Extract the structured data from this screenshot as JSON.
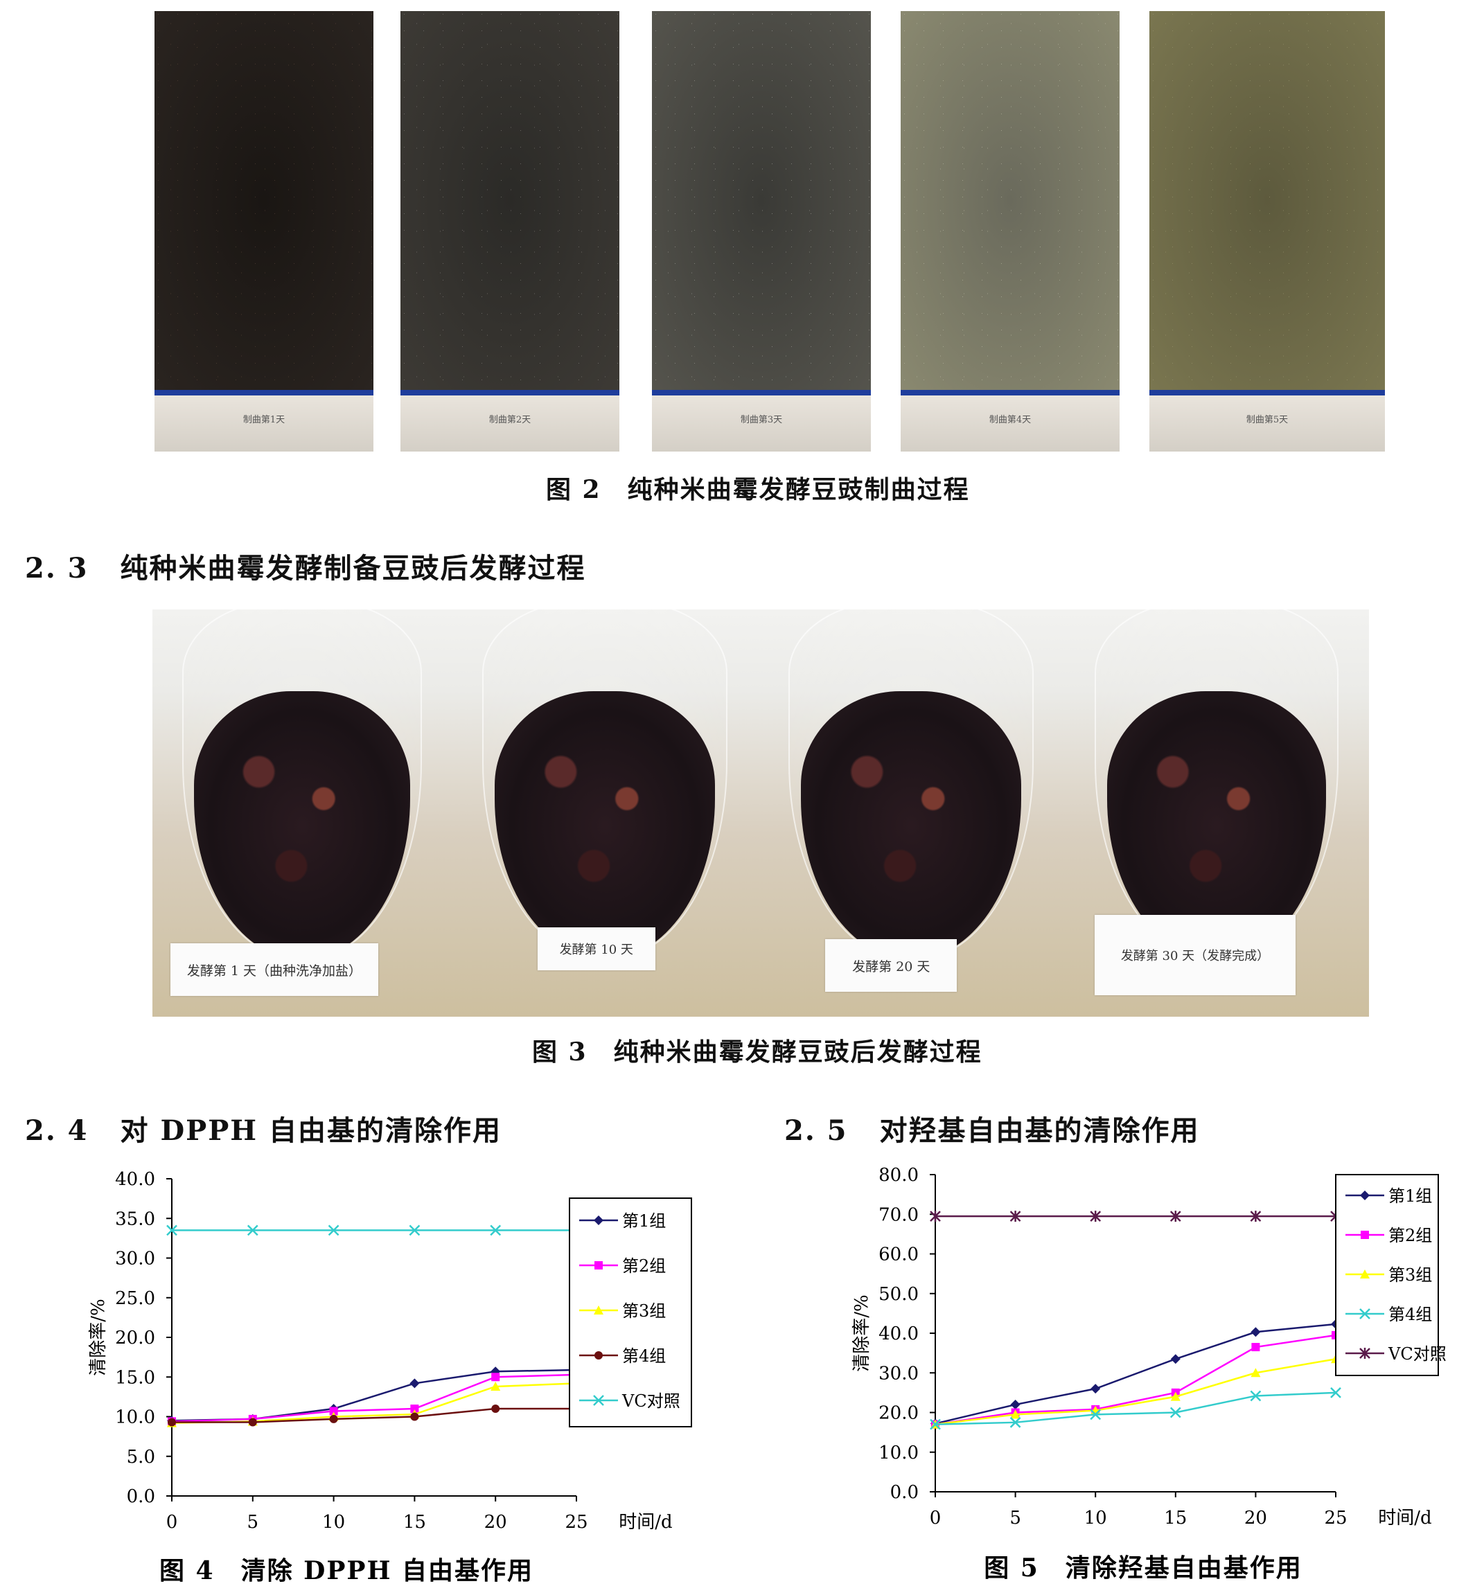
{
  "fig2": {
    "caption": "图 2　纯种米曲霉发酵豆豉制曲过程",
    "trays": [
      {
        "label": "制曲第1天",
        "color_top": "#1a1613",
        "color_bottom": "#2a2420",
        "speck": "#6b5040"
      },
      {
        "label": "制曲第2天",
        "color_top": "#2b2a27",
        "color_bottom": "#3d3a35",
        "speck": "#9a9590"
      },
      {
        "label": "制曲第3天",
        "color_top": "#3a3a36",
        "color_bottom": "#55544d",
        "speck": "#b5b4ad"
      },
      {
        "label": "制曲第4天",
        "color_top": "#6a6a5c",
        "color_bottom": "#8a8970",
        "speck": "#c9c8b2"
      },
      {
        "label": "制曲第5天",
        "color_top": "#5d5a3d",
        "color_bottom": "#7a7650",
        "speck": "#a8a47a"
      }
    ]
  },
  "section_2_3": {
    "number": "2. 3",
    "title": "纯种米曲霉发酵制备豆豉后发酵过程"
  },
  "fig3": {
    "caption": "图 3　纯种米曲霉发酵豆豉后发酵过程",
    "flasks": [
      {
        "label": "发酵第 1 天（曲种洗净加盐）"
      },
      {
        "label": "发酵第 10 天"
      },
      {
        "label": "发酵第 20 天"
      },
      {
        "label": "发酵第 30 天（发酵完成）"
      }
    ]
  },
  "section_2_4": {
    "number": "2. 4",
    "title": "对 DPPH 自由基的清除作用"
  },
  "section_2_5": {
    "number": "2. 5",
    "title": "对羟基自由基的清除作用"
  },
  "chart_data": [
    {
      "type": "line",
      "caption": "图 4　清除 DPPH 自由基作用",
      "ylabel": "清除率/%",
      "xlabel": "时间/d",
      "x": [
        0,
        5,
        10,
        15,
        20,
        25
      ],
      "xticks": [
        "0",
        "5",
        "10",
        "15",
        "20",
        "25"
      ],
      "ylim": [
        0,
        40
      ],
      "yticks": [
        "0.0",
        "5.0",
        "10.0",
        "15.0",
        "20.0",
        "25.0",
        "30.0",
        "35.0",
        "40.0"
      ],
      "legend_position": "right",
      "series": [
        {
          "name": "第1组",
          "color": "#1a1a6e",
          "marker": "diamond",
          "values": [
            9.5,
            9.7,
            11.0,
            14.2,
            15.7,
            15.9
          ]
        },
        {
          "name": "第2组",
          "color": "#ff00ff",
          "marker": "square",
          "values": [
            9.4,
            9.7,
            10.7,
            11.0,
            15.0,
            15.3
          ]
        },
        {
          "name": "第3组",
          "color": "#ffff00",
          "marker": "triangle",
          "values": [
            9.2,
            9.4,
            10.0,
            10.3,
            13.8,
            14.2
          ]
        },
        {
          "name": "第4组",
          "color": "#6b0f0f",
          "marker": "circle",
          "values": [
            9.3,
            9.3,
            9.7,
            10.0,
            11.0,
            11.0
          ]
        },
        {
          "name": "VC对照",
          "color": "#33cccc",
          "marker": "x",
          "values": [
            33.5,
            33.5,
            33.5,
            33.5,
            33.5,
            33.5
          ]
        }
      ]
    },
    {
      "type": "line",
      "caption": "图 5　清除羟基自由基作用",
      "ylabel": "清除率/%",
      "xlabel": "时间/d",
      "x": [
        0,
        5,
        10,
        15,
        20,
        25
      ],
      "xticks": [
        "0",
        "5",
        "10",
        "15",
        "20",
        "25"
      ],
      "ylim": [
        0,
        80
      ],
      "yticks": [
        "0.0",
        "10.0",
        "20.0",
        "30.0",
        "40.0",
        "50.0",
        "60.0",
        "70.0",
        "80.0"
      ],
      "legend_position": "top-right",
      "series": [
        {
          "name": "第1组",
          "color": "#1a1a6e",
          "marker": "diamond",
          "values": [
            17.2,
            22.0,
            26.0,
            33.5,
            40.3,
            42.3
          ]
        },
        {
          "name": "第2组",
          "color": "#ff00ff",
          "marker": "square",
          "values": [
            17.0,
            20.0,
            20.8,
            25.0,
            36.5,
            39.5
          ]
        },
        {
          "name": "第3组",
          "color": "#ffff00",
          "marker": "triangle",
          "values": [
            17.0,
            19.5,
            20.5,
            24.0,
            30.0,
            33.5
          ]
        },
        {
          "name": "第4组",
          "color": "#33cccc",
          "marker": "x",
          "values": [
            17.0,
            17.5,
            19.5,
            20.0,
            24.2,
            25.0
          ]
        },
        {
          "name": "VC对照",
          "color": "#5a1a4a",
          "marker": "star",
          "values": [
            69.5,
            69.5,
            69.5,
            69.5,
            69.5,
            69.5
          ]
        }
      ]
    }
  ]
}
